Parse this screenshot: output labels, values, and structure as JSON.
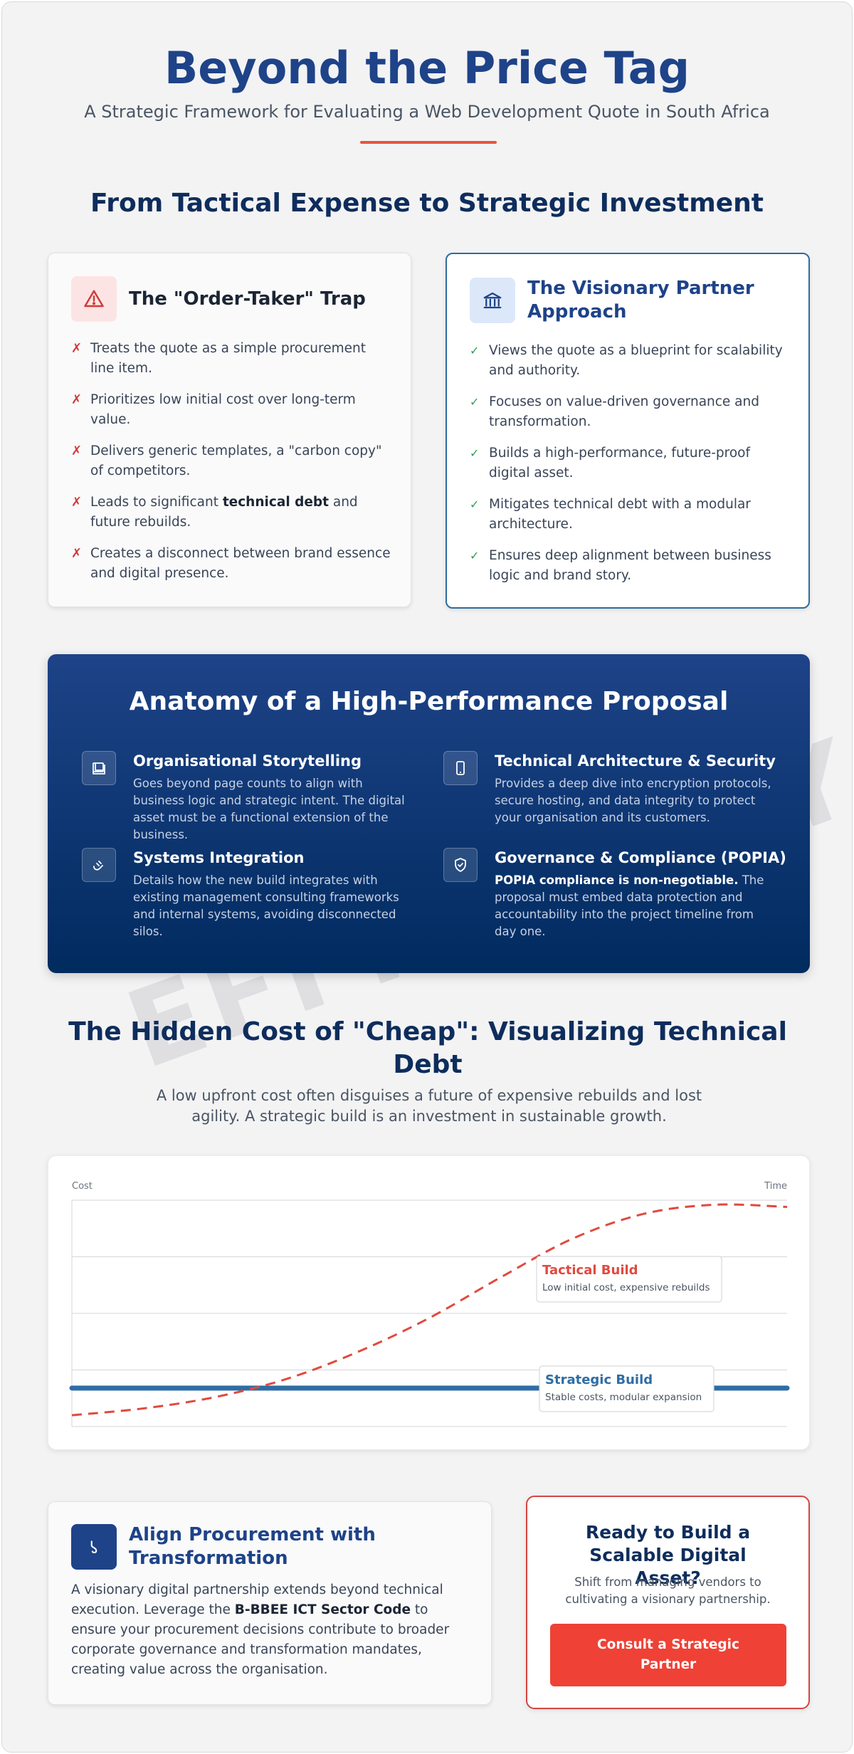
{
  "header": {
    "title": "Beyond the Price Tag",
    "subtitle": "A Strategic Framework for Evaluating a Web Development Quote in South Africa"
  },
  "watermark": "EFFICIENCY",
  "comparison": {
    "title": "From Tactical Expense to Strategic Investment",
    "trap": {
      "title": "The \"Order-Taker\" Trap",
      "icon": "warning-icon",
      "items": [
        {
          "pre": "Treats the quote as a simple procurement line item.",
          "bold": "",
          "post": ""
        },
        {
          "pre": "Prioritizes low initial cost over long-term value.",
          "bold": "",
          "post": ""
        },
        {
          "pre": "Delivers generic templates, a \"carbon copy\" of competitors.",
          "bold": "",
          "post": ""
        },
        {
          "pre": "Leads to significant ",
          "bold": "technical debt",
          "post": " and future rebuilds."
        },
        {
          "pre": "Creates a disconnect between brand essence and digital presence.",
          "bold": "",
          "post": ""
        }
      ]
    },
    "partner": {
      "title": "The Visionary Partner Approach",
      "icon": "bank-icon",
      "items": [
        "Views the quote as a blueprint for scalability and authority.",
        "Focuses on value-driven governance and transformation.",
        "Builds a high-performance, future-proof digital asset.",
        "Mitigates technical debt with a modular architecture.",
        "Ensures deep alignment between business logic and brand story."
      ]
    }
  },
  "anatomy": {
    "title": "Anatomy of a High-Performance Proposal",
    "features": [
      {
        "title": "Organisational Storytelling",
        "icon": "book-icon",
        "desc_bold": "",
        "desc": "Goes beyond page counts to align with business logic and strategic intent. The digital asset must be a functional extension of the business."
      },
      {
        "title": "Technical Architecture & Security",
        "icon": "mobile-icon",
        "desc_bold": "",
        "desc": "Provides a deep dive into encryption protocols, secure hosting, and data integrity to protect your organisation and its customers."
      },
      {
        "title": "Systems Integration",
        "icon": "plug-icon",
        "desc_bold": "",
        "desc": "Details how the new build integrates with existing management consulting frameworks and internal systems, avoiding disconnected silos."
      },
      {
        "title": "Governance & Compliance (POPIA)",
        "icon": "shield-check-icon",
        "desc_bold": "POPIA compliance is non-negotiable.",
        "desc": " The proposal must embed data protection and accountability into the project timeline from day one."
      }
    ]
  },
  "debt": {
    "title": "The Hidden Cost of \"Cheap\": Visualizing Technical Debt",
    "subtitle": "A low upfront cost often disguises a future of expensive rebuilds and lost agility. A strategic build is an investment in sustainable growth."
  },
  "chart_data": {
    "type": "line",
    "ylabel": "Cost",
    "xlabel": "Time",
    "grid": true,
    "legend_placement": "inline annotations",
    "series": [
      {
        "name": "Tactical Build",
        "note": "Low initial cost, expensive rebuilds",
        "color": "#e04a3f",
        "style": "dashed",
        "x": [
          0,
          0.1,
          0.2,
          0.3,
          0.4,
          0.5,
          0.6,
          0.7,
          0.8,
          0.9,
          1.0
        ],
        "y": [
          0.05,
          0.08,
          0.13,
          0.21,
          0.33,
          0.48,
          0.66,
          0.83,
          0.94,
          0.98,
          0.97
        ]
      },
      {
        "name": "Strategic Build",
        "note": "Stable costs, modular expansion",
        "color": "#2e6da4",
        "style": "solid",
        "x": [
          0,
          1.0
        ],
        "y": [
          0.17,
          0.17
        ]
      }
    ]
  },
  "procurement": {
    "title": "Align Procurement with Transformation",
    "icon": "link-icon",
    "text_pre": "A visionary digital partnership extends beyond technical execution. Leverage the ",
    "text_bold": "B-BBEE ICT Sector Code",
    "text_post": " to ensure your procurement decisions contribute to broader corporate governance and transformation mandates, creating value across the organisation."
  },
  "cta": {
    "title": "Ready to Build a Scalable Digital Asset?",
    "subtitle": "Shift from managing vendors to cultivating a visionary partnership.",
    "button": "Consult a Strategic Partner"
  },
  "colors": {
    "brand": "#1e4388",
    "accent": "#e4563e",
    "navy": "#0e2d5c",
    "success": "#2e9e56",
    "danger": "#d03b3b"
  }
}
